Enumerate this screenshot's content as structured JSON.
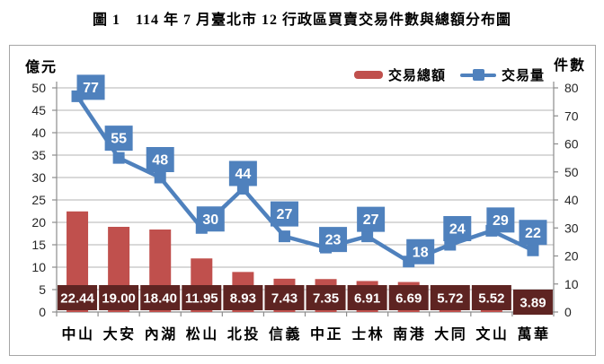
{
  "title": "圖 1　114 年 7 月臺北市 12 行政區買賣交易件數與總額分布圖",
  "chart_data": {
    "type": "combo-bar-line",
    "categories": [
      "中山",
      "大安",
      "內湖",
      "松山",
      "北投",
      "信義",
      "中正",
      "士林",
      "南港",
      "大同",
      "文山",
      "萬華"
    ],
    "series": [
      {
        "name": "交易總額",
        "type": "bar",
        "axis": "left",
        "values": [
          22.44,
          19.0,
          18.4,
          11.95,
          8.93,
          7.43,
          7.35,
          6.91,
          6.69,
          5.72,
          5.52,
          3.89
        ],
        "labels": [
          "22.44",
          "19.00",
          "18.40",
          "11.95",
          "8.93",
          "7.43",
          "7.35",
          "6.91",
          "6.69",
          "5.72",
          "5.52",
          "3.89"
        ]
      },
      {
        "name": "交易量",
        "type": "line",
        "axis": "right",
        "values": [
          77,
          55,
          48,
          30,
          44,
          27,
          23,
          27,
          18,
          24,
          29,
          22
        ],
        "labels": [
          "77",
          "55",
          "48",
          "30",
          "44",
          "27",
          "23",
          "27",
          "18",
          "24",
          "29",
          "22"
        ]
      }
    ],
    "axis_left": {
      "title": "億元",
      "min": 0,
      "max": 50,
      "step": 5,
      "ticks": [
        "0",
        "5",
        "10",
        "15",
        "20",
        "25",
        "30",
        "35",
        "40",
        "45",
        "50"
      ]
    },
    "axis_right": {
      "title": "件數",
      "min": 0,
      "max": 80,
      "step": 10,
      "ticks": [
        "0",
        "10",
        "20",
        "30",
        "40",
        "50",
        "60",
        "70",
        "80"
      ]
    },
    "legend": [
      "交易總額",
      "交易量"
    ],
    "legend_position": "top-right",
    "grid": true,
    "colors": {
      "bar": "#C0504D",
      "bar_label_bg": "#5E2422",
      "line": "#4F81BD",
      "line_label_bg": "#4F81BD",
      "label_text": "#FFFFFF",
      "grid": "#B3B3B3",
      "axis": "#8C8C8C",
      "tick_text": "#262626",
      "frame_border": "#A6A6A6"
    }
  }
}
